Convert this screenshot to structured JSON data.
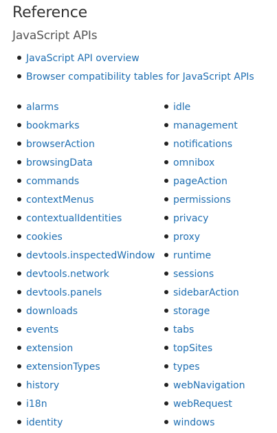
{
  "title": "Reference",
  "subtitle": "JavaScript APIs",
  "top_links": [
    "JavaScript API overview",
    "Browser compatibility tables for JavaScript APIs"
  ],
  "left_column": [
    "alarms",
    "bookmarks",
    "browserAction",
    "browsingData",
    "commands",
    "contextMenus",
    "contextualIdentities",
    "cookies",
    "devtools.inspectedWindow",
    "devtools.network",
    "devtools.panels",
    "downloads",
    "events",
    "extension",
    "extensionTypes",
    "history",
    "i18n",
    "identity"
  ],
  "right_column": [
    "idle",
    "management",
    "notifications",
    "omnibox",
    "pageAction",
    "permissions",
    "privacy",
    "proxy",
    "runtime",
    "sessions",
    "sidebarAction",
    "storage",
    "tabs",
    "topSites",
    "types",
    "webNavigation",
    "webRequest",
    "windows"
  ],
  "colors": {
    "link": "#1f6fb2",
    "text": "#333333",
    "bullet": "#222222"
  }
}
